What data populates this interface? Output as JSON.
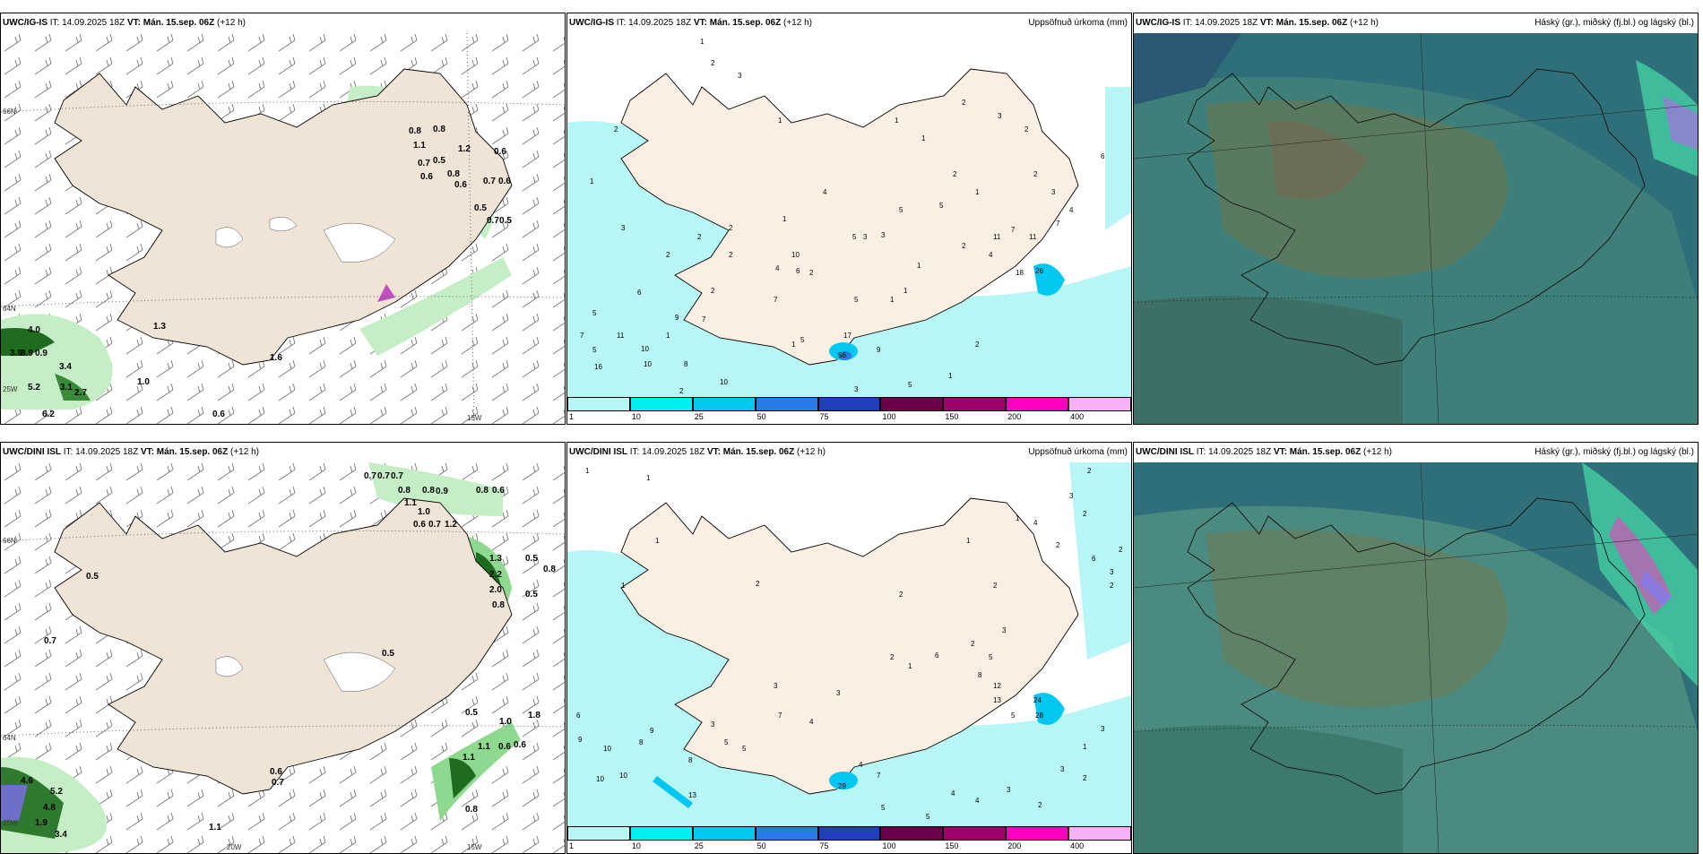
{
  "panels": [
    {
      "model": "UWC/IG-IS",
      "it": "14.09.2025 18Z",
      "vt": "Mán. 15.sep. 06Z",
      "lead": "(+12 h)",
      "title": ""
    },
    {
      "model": "UWC/IG-IS",
      "it": "14.09.2025 18Z",
      "vt": "Mán. 15.sep. 06Z",
      "lead": "(+12 h)",
      "title": "Uppsöfnuð úrkoma (mm)"
    },
    {
      "model": "UWC/IG-IS",
      "it": "14.09.2025 18Z",
      "vt": "Mán. 15.sep. 06Z",
      "lead": "(+12 h)",
      "title": "Háský (gr.), miðský (fj.bl.) og lágský (bl.)"
    },
    {
      "model": "UWC/DINI ISL",
      "it": "14.09.2025 18Z",
      "vt": "Mán. 15.sep. 06Z",
      "lead": "(+12 h)",
      "title": ""
    },
    {
      "model": "UWC/DINI ISL",
      "it": "14.09.2025 18Z",
      "vt": "Mán. 15.sep. 06Z",
      "lead": "(+12 h)",
      "title": "Uppsöfnuð úrkoma (mm)"
    },
    {
      "model": "UWC/DINI ISL",
      "it": "14.09.2025 18Z",
      "vt": "Mán. 15.sep. 06Z",
      "lead": "(+12 h)",
      "title": "Háský (gr.), miðský (fj.bl.) og lágský (bl.)"
    }
  ],
  "labels": {
    "it": "IT:",
    "vt": "VT:"
  },
  "axes": {
    "lat66": "66N",
    "lat64": "64N",
    "lon25": "25W",
    "lon20": "20W",
    "lon15": "15W"
  },
  "colorbar": {
    "ticks": [
      "1",
      "10",
      "25",
      "50",
      "75",
      "100",
      "150",
      "200",
      "400"
    ],
    "colors": [
      "#b8f5f5",
      "#00f0f0",
      "#00c8f0",
      "#2a7ae8",
      "#1f3fbf",
      "#6a004a",
      "#a0006a",
      "#ff00c0",
      "#f6b0f6"
    ]
  },
  "precip_values": {
    "top": [
      "0.8",
      "0.8",
      "1.1",
      "0.7",
      "0.5",
      "1.2",
      "0.6",
      "0.6",
      "0.8",
      "0.6",
      "0.7",
      "0.6",
      "0.5",
      "0.7",
      "0.5",
      "4.0",
      "3.9",
      "0.9",
      "3.9",
      "3.4",
      "5.2",
      "3.1",
      "2.7",
      "6.2",
      "1.0",
      "0.6",
      "1.6",
      "1.3"
    ],
    "bottom": [
      "0.7",
      "0.7",
      "0.7",
      "0.8",
      "0.8",
      "0.9",
      "1.1",
      "1.0",
      "0.6",
      "0.7",
      "1.2",
      "0.8",
      "0.6",
      "0.5",
      "0.7",
      "0.5",
      "0.8",
      "0.5",
      "1.3",
      "2.2",
      "2.0",
      "0.8",
      "0.5",
      "0.5",
      "1.0",
      "1.8",
      "0.6",
      "0.6",
      "1.1",
      "1.1",
      "0.8",
      "4.6",
      "5.2",
      "4.8",
      "1.9",
      "3.4",
      "1.1",
      "0.6",
      "0.7"
    ]
  },
  "accum_values": {
    "top": [
      "1",
      "2",
      "3",
      "2",
      "1",
      "1",
      "1",
      "2",
      "2",
      "3",
      "1",
      "2",
      "1",
      "2",
      "3",
      "4",
      "6",
      "3",
      "2",
      "2",
      "2",
      "1",
      "6",
      "1",
      "2",
      "5",
      "7",
      "10",
      "5",
      "9",
      "7",
      "2",
      "1",
      "11",
      "16",
      "10",
      "8",
      "2",
      "10",
      "5",
      "7",
      "1",
      "3",
      "2",
      "10",
      "1",
      "5",
      "4",
      "6",
      "4",
      "5",
      "3",
      "5",
      "5",
      "2",
      "4",
      "7",
      "11",
      "11",
      "18",
      "7",
      "26",
      "17",
      "56",
      "9",
      "3",
      "1",
      "1",
      "5",
      "2"
    ],
    "bottom": [
      "1",
      "1",
      "2",
      "1",
      "1",
      "3",
      "2",
      "1",
      "2",
      "3",
      "1",
      "2",
      "4",
      "6",
      "2",
      "2",
      "2",
      "2",
      "3",
      "2",
      "6",
      "9",
      "10",
      "8",
      "10",
      "13",
      "10",
      "9",
      "8",
      "5",
      "3",
      "5",
      "3",
      "7",
      "4",
      "3",
      "4",
      "2",
      "1",
      "6",
      "8",
      "5",
      "12",
      "13",
      "5",
      "24",
      "28",
      "3",
      "1",
      "3",
      "2",
      "2",
      "3",
      "4",
      "29",
      "5",
      "7",
      "4",
      "5"
    ]
  }
}
